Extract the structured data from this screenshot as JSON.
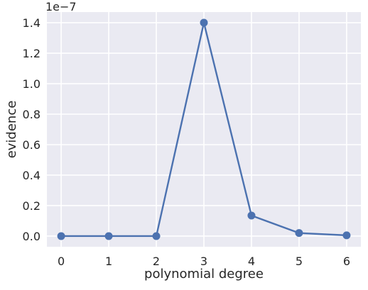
{
  "chart_data": {
    "type": "line",
    "xlabel": "polynomial degree",
    "ylabel": "evidence",
    "y_offset_label": "1e−7",
    "x": [
      0,
      1,
      2,
      3,
      4,
      5,
      6
    ],
    "xticks": [
      "0",
      "1",
      "2",
      "3",
      "4",
      "5",
      "6"
    ],
    "xlim": [
      -0.3,
      6.3
    ],
    "yticks": [
      "0.0",
      "0.2",
      "0.4",
      "0.6",
      "0.8",
      "1.0",
      "1.2",
      "1.4"
    ],
    "ytick_values": [
      0.0,
      0.2,
      0.4,
      0.6,
      0.8,
      1.0,
      1.2,
      1.4
    ],
    "ylim": [
      -0.07,
      1.47
    ],
    "series": [
      {
        "values": [
          0.0,
          0.0,
          0.0,
          1.4,
          0.135,
          0.02,
          0.005
        ],
        "color": "#4c72b0"
      }
    ],
    "grid": true,
    "background_color": "#eaeaf2",
    "grid_color": "#ffffff"
  }
}
